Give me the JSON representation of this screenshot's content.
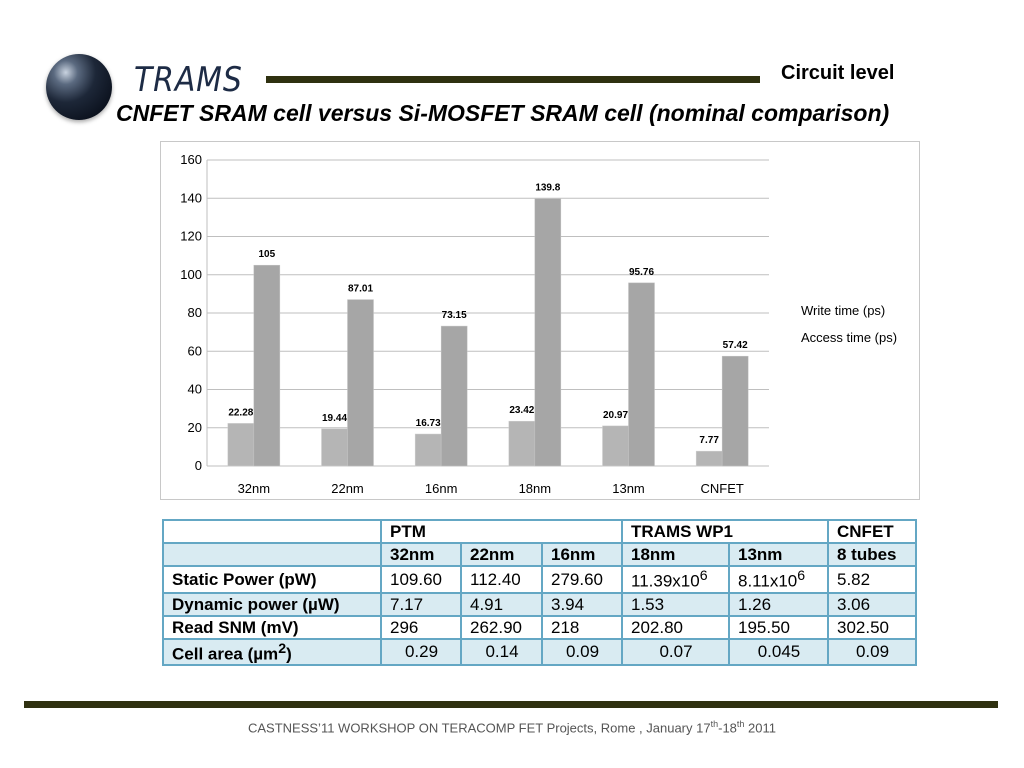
{
  "header": {
    "logo_text": "TRAMS",
    "section_label": "Circuit level",
    "title": "CNFET SRAM cell versus Si-MOSFET SRAM cell (nominal comparison)"
  },
  "chart_data": {
    "type": "bar",
    "categories": [
      "32nm",
      "22nm",
      "16nm",
      "18nm",
      "13nm",
      "CNFET"
    ],
    "series": [
      {
        "name": "Write time (ps)",
        "values": [
          22.28,
          19.44,
          16.73,
          23.42,
          20.97,
          7.77
        ]
      },
      {
        "name": "Access time (ps)",
        "values": [
          105,
          87.01,
          73.15,
          139.8,
          95.76,
          57.42
        ]
      }
    ],
    "data_labels": {
      "write": [
        "22.28",
        "19.44",
        "16.73",
        "23.42",
        "20.97",
        "7.77"
      ],
      "access": [
        "105",
        "87.01",
        "73.15",
        "139.8",
        "95.76",
        "57.42"
      ]
    },
    "ylim": [
      0,
      160
    ],
    "yticks": [
      "0",
      "20",
      "40",
      "60",
      "80",
      "100",
      "120",
      "140",
      "160"
    ],
    "legend_labels": [
      "Write time (ps)",
      "Access time (ps)"
    ],
    "legend_position": "right",
    "grid": true,
    "colors": {
      "write": "#b5b5b5",
      "access": "#a6a6a6",
      "grid": "#bfbfbf"
    }
  },
  "table": {
    "header_row1": [
      "",
      "PTM",
      "TRAMS WP1",
      "CNFET"
    ],
    "header_row2": [
      "",
      "32nm",
      "22nm",
      "16nm",
      "18nm",
      "13nm",
      "8 tubes"
    ],
    "rows": [
      {
        "label": "Static Power (pW)",
        "values": [
          "109.60",
          "112.40",
          "279.60",
          "11.39x10",
          "8.11x10",
          "5.82"
        ],
        "exponents": [
          "",
          "",
          "",
          "6",
          "6",
          ""
        ]
      },
      {
        "label": "Dynamic power (µW)",
        "values": [
          "7.17",
          "4.91",
          "3.94",
          "1.53",
          "1.26",
          "3.06"
        ]
      },
      {
        "label": "Read SNM (mV)",
        "values": [
          "296",
          "262.90",
          "218",
          "202.80",
          "195.50",
          "302.50"
        ]
      },
      {
        "label": "Cell area (µm",
        "label_sup": "2",
        "label_end": ")",
        "values": [
          "0.29",
          "0.14",
          "0.09",
          "0.07",
          "0.045",
          "0.09"
        ]
      }
    ]
  },
  "footer": {
    "text_main": "CASTNESS’11 WORKSHOP ON TERACOMP  FET Projects, Rome , January 17",
    "sup1": "th",
    "mid": "-18",
    "sup2": "th",
    "year": " 2011"
  }
}
